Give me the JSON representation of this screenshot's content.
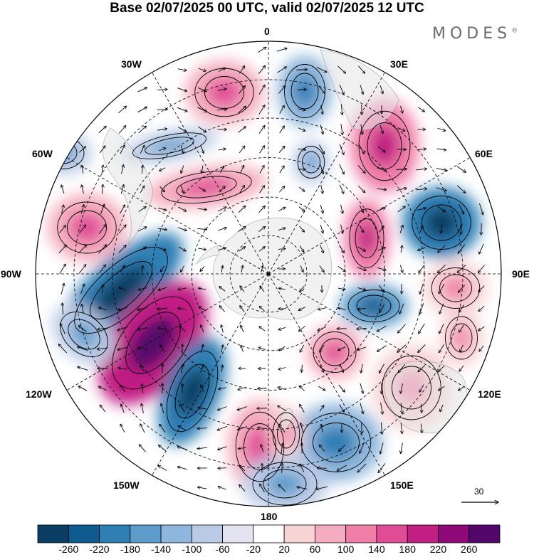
{
  "header": {
    "title": "Base 02/07/2025 00 UTC, valid 02/07/2025 12 UTC",
    "brand": "MODES",
    "brand_mark": "®"
  },
  "map": {
    "projection": "south-polar-stereographic",
    "longitude_labels": {
      "l0": "0",
      "l30e": "30E",
      "l60e": "60E",
      "l90e": "90E",
      "l120e": "120E",
      "l150e": "150E",
      "l180": "180",
      "l150w": "150W",
      "l120w": "120W",
      "l90w": "90W",
      "l60w": "60W",
      "l30w": "30W"
    },
    "reference_vector": "30",
    "colors": {
      "land": "#e6e6e6",
      "coast": "#8c8c8c",
      "grid": "#000000",
      "arrow": "#000000"
    }
  },
  "colorbar": {
    "colors": [
      "#0a3d62",
      "#0f5a8e",
      "#2f7fb5",
      "#5b9ccb",
      "#8fb6dc",
      "#bbcbe6",
      "#e2e2f1",
      "#ffffff",
      "#f7d3d6",
      "#f4adc0",
      "#f07fa8",
      "#e14c97",
      "#c21f84",
      "#8f0a78",
      "#52086b"
    ],
    "labels": [
      "-260",
      "-220",
      "-180",
      "-140",
      "-100",
      "-60",
      "-20",
      "20",
      "60",
      "100",
      "140",
      "180",
      "220",
      "260"
    ]
  }
}
